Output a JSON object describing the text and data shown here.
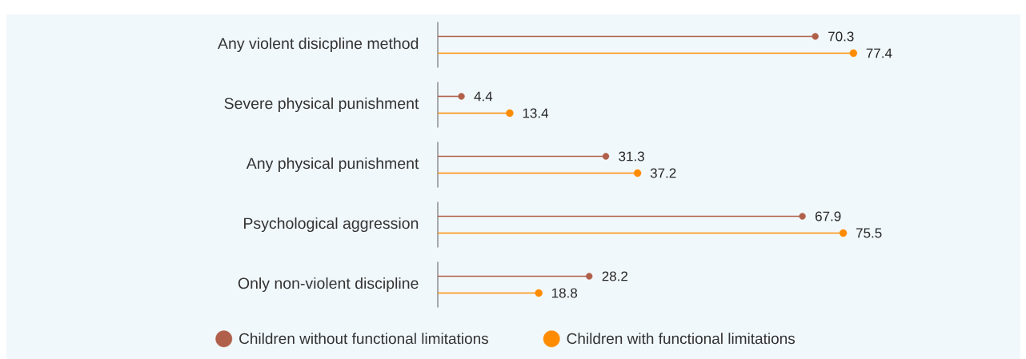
{
  "chart_data": {
    "type": "lollipop",
    "orientation": "horizontal",
    "categories": [
      "Any violent disicpline method",
      "Severe physical punishment",
      "Any physical punishment",
      "Psychological aggression",
      "Only non-violent discipline"
    ],
    "series": [
      {
        "name": "Children without functional limitations",
        "color": "#b0604a",
        "values": [
          70.3,
          4.4,
          31.3,
          67.9,
          28.2
        ]
      },
      {
        "name": "Children with functional limitations",
        "color": "#ff8c00",
        "values": [
          77.4,
          13.4,
          37.2,
          75.5,
          18.8
        ]
      }
    ],
    "data_labels": true,
    "legend": "bottom",
    "marker": "circle",
    "tick_labels": "y"
  }
}
